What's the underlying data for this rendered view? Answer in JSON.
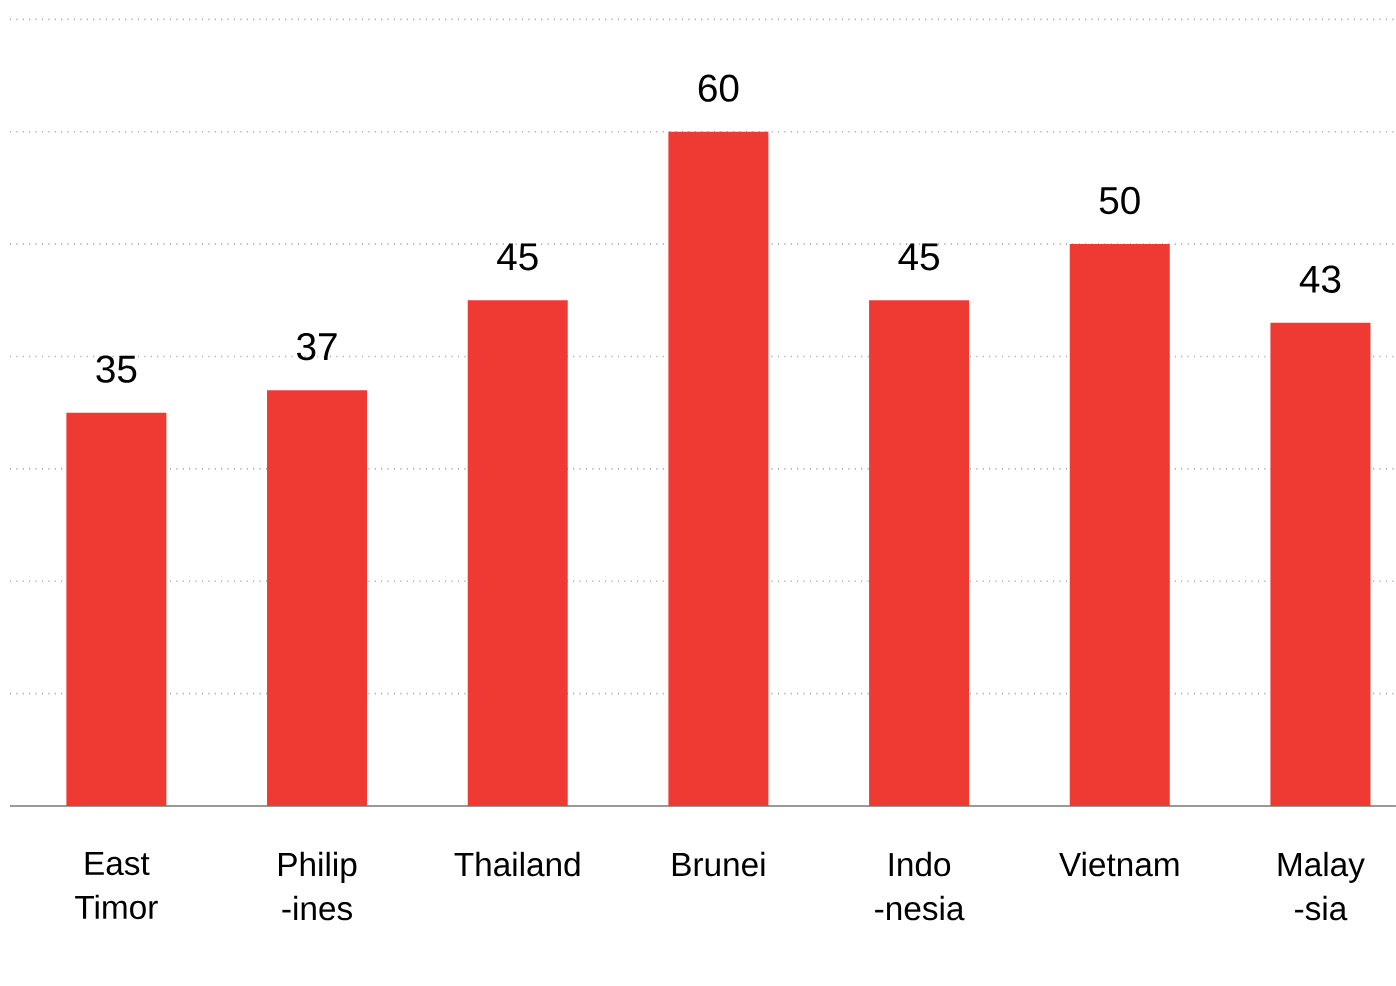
{
  "chart_data": {
    "type": "bar",
    "categories": [
      "East Timor",
      "Philip -ines",
      "Thailand",
      "Brunei",
      "Indo -nesia",
      "Vietnam",
      "Malay -sia"
    ],
    "values": [
      35,
      37,
      45,
      60,
      45,
      50,
      43
    ],
    "color": "#ee3a33",
    "ylim": [
      0,
      70
    ],
    "yticks": [
      {
        "value": 0,
        "label": null
      },
      {
        "value": 10,
        "label": null
      },
      {
        "value": 20,
        "label": null
      },
      {
        "value": 30,
        "label": null
      },
      {
        "value": 40,
        "label": null
      },
      {
        "value": 50,
        "label": null
      },
      {
        "value": 60,
        "label": null
      },
      {
        "value": 70,
        "label": null
      }
    ],
    "grid": "y",
    "data_labels": true,
    "tick_labels": "x"
  }
}
